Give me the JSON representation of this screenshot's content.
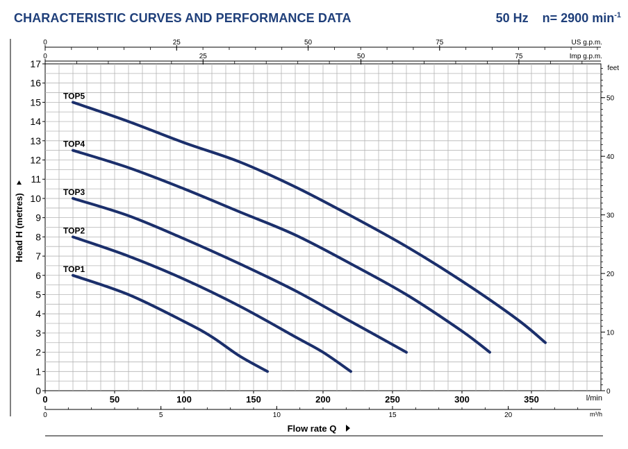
{
  "header": {
    "title": "CHARACTERISTIC CURVES AND PERFORMANCE DATA",
    "freq": "50 Hz",
    "speed_prefix": "n= 2900 min",
    "speed_exp": "-1"
  },
  "colors": {
    "curve": "#1b2f6b",
    "title": "#1f3f7a",
    "grid": "#b4b4b4"
  },
  "chart_data": {
    "type": "line",
    "title": "CHARACTERISTIC CURVES AND PERFORMANCE DATA",
    "xlabel": "Flow rate Q",
    "ylabel": "Head H  (metres)",
    "x_unit": "l/min",
    "xlim": [
      0,
      400
    ],
    "ylim": [
      0,
      17
    ],
    "grid": true,
    "x_ticks": [
      0,
      50,
      100,
      150,
      200,
      250,
      300,
      350
    ],
    "y_ticks": [
      0,
      1,
      2,
      3,
      4,
      5,
      6,
      7,
      8,
      9,
      10,
      11,
      12,
      13,
      14,
      15,
      16,
      17
    ],
    "secondary_axes": {
      "m3h": {
        "unit": "m³/h",
        "ticks": [
          0,
          5,
          10,
          15,
          20
        ],
        "lim": [
          0,
          24
        ]
      },
      "us_gpm": {
        "unit": "US g.p.m.",
        "ticks": [
          0,
          25,
          50,
          75
        ],
        "lim": [
          0,
          105.67
        ]
      },
      "imp_gpm": {
        "unit": "Imp g.p.m.",
        "ticks": [
          0,
          25,
          50,
          75
        ],
        "lim": [
          0,
          87.99
        ]
      },
      "feet": {
        "unit": "feet",
        "ticks": [
          0,
          10,
          20,
          30,
          40,
          50
        ],
        "lim": [
          0,
          55.77
        ]
      }
    },
    "series": [
      {
        "name": "TOP1",
        "x": [
          20,
          60,
          100,
          120,
          140,
          160
        ],
        "y": [
          6,
          5,
          3.6,
          2.8,
          1.8,
          1
        ]
      },
      {
        "name": "TOP2",
        "x": [
          20,
          60,
          100,
          140,
          180,
          200,
          220
        ],
        "y": [
          8,
          7,
          5.8,
          4.4,
          2.8,
          2,
          1
        ]
      },
      {
        "name": "TOP3",
        "x": [
          20,
          60,
          100,
          140,
          180,
          220,
          260
        ],
        "y": [
          10,
          9.1,
          7.9,
          6.6,
          5.2,
          3.6,
          2
        ]
      },
      {
        "name": "TOP4",
        "x": [
          20,
          60,
          100,
          140,
          180,
          220,
          260,
          300,
          320
        ],
        "y": [
          12.5,
          11.6,
          10.5,
          9.3,
          8.1,
          6.6,
          5,
          3.1,
          2
        ]
      },
      {
        "name": "TOP5",
        "x": [
          20,
          60,
          100,
          140,
          180,
          220,
          260,
          300,
          340,
          360
        ],
        "y": [
          15,
          14,
          12.9,
          11.9,
          10.6,
          9.1,
          7.5,
          5.7,
          3.7,
          2.5
        ]
      }
    ]
  }
}
